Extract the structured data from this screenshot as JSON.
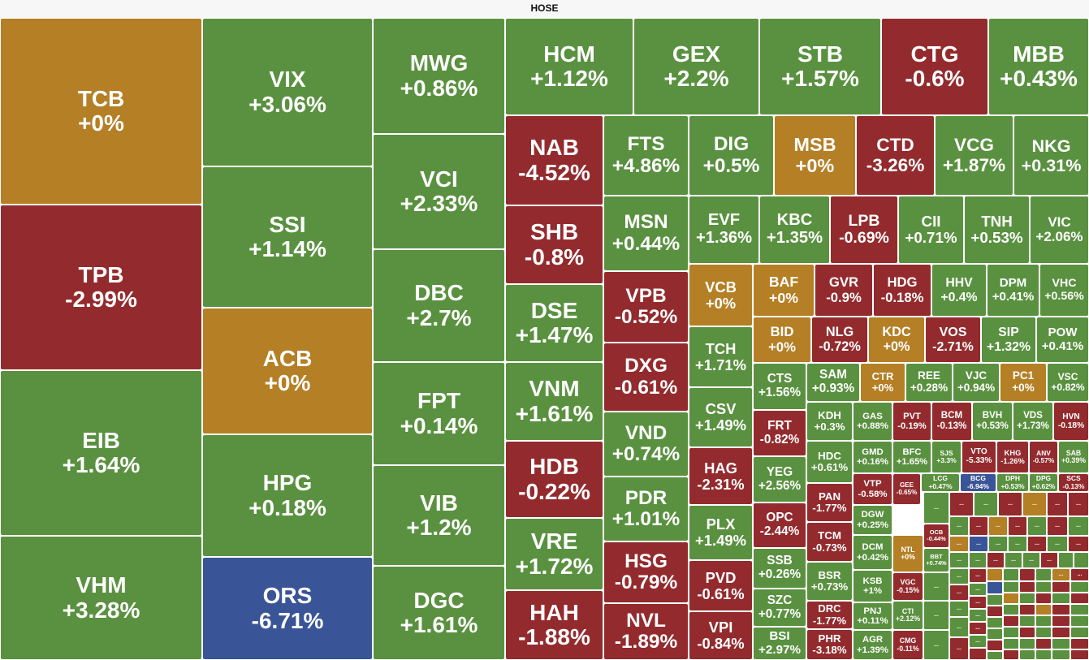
{
  "title": "HOSE",
  "colors": {
    "up": "#5a9140",
    "down": "#932b2e",
    "ref": "#b47f25",
    "floor": "#3a5597"
  },
  "chart_data": {
    "type": "treemap",
    "title": "HOSE",
    "tiles": [
      {
        "s": "TCB",
        "c": "+0%"
      },
      {
        "s": "TPB",
        "c": "-2.99%"
      },
      {
        "s": "EIB",
        "c": "+1.64%"
      },
      {
        "s": "VHM",
        "c": "+3.28%"
      },
      {
        "s": "VIX",
        "c": "+3.06%"
      },
      {
        "s": "SSI",
        "c": "+1.14%"
      },
      {
        "s": "ACB",
        "c": "+0%"
      },
      {
        "s": "HPG",
        "c": "+0.18%"
      },
      {
        "s": "ORS",
        "c": "-6.71%"
      },
      {
        "s": "MWG",
        "c": "+0.86%"
      },
      {
        "s": "VCI",
        "c": "+2.33%"
      },
      {
        "s": "DBC",
        "c": "+2.7%"
      },
      {
        "s": "FPT",
        "c": "+0.14%"
      },
      {
        "s": "VIB",
        "c": "+1.2%"
      },
      {
        "s": "DGC",
        "c": "+1.61%"
      },
      {
        "s": "HCM",
        "c": "+1.12%"
      },
      {
        "s": "GEX",
        "c": "+2.2%"
      },
      {
        "s": "STB",
        "c": "+1.57%"
      },
      {
        "s": "CTG",
        "c": "-0.6%"
      },
      {
        "s": "MBB",
        "c": "+0.43%"
      },
      {
        "s": "NAB",
        "c": "-4.52%"
      },
      {
        "s": "SHB",
        "c": "-0.8%"
      },
      {
        "s": "DSE",
        "c": "+1.47%"
      },
      {
        "s": "VNM",
        "c": "+1.61%"
      },
      {
        "s": "HDB",
        "c": "-0.22%"
      },
      {
        "s": "VRE",
        "c": "+1.72%"
      },
      {
        "s": "HAH",
        "c": "-1.88%"
      },
      {
        "s": "FTS",
        "c": "+4.86%"
      },
      {
        "s": "DIG",
        "c": "+0.5%"
      },
      {
        "s": "MSB",
        "c": "+0%"
      },
      {
        "s": "CTD",
        "c": "-3.26%"
      },
      {
        "s": "VCG",
        "c": "+1.87%"
      },
      {
        "s": "NKG",
        "c": "+0.31%"
      },
      {
        "s": "MSN",
        "c": "+0.44%"
      },
      {
        "s": "VPB",
        "c": "-0.52%"
      },
      {
        "s": "DXG",
        "c": "-0.61%"
      },
      {
        "s": "VND",
        "c": "+0.74%"
      },
      {
        "s": "PDR",
        "c": "+1.01%"
      },
      {
        "s": "HSG",
        "c": "-0.79%"
      },
      {
        "s": "NVL",
        "c": "-1.89%"
      },
      {
        "s": "EVF",
        "c": "+1.36%"
      },
      {
        "s": "KBC",
        "c": "+1.35%"
      },
      {
        "s": "LPB",
        "c": "-0.69%"
      },
      {
        "s": "CII",
        "c": "+0.71%"
      },
      {
        "s": "TNH",
        "c": "+0.53%"
      },
      {
        "s": "VIC",
        "c": "+2.06%"
      },
      {
        "s": "VCB",
        "c": "+0%"
      },
      {
        "s": "TCH",
        "c": "+1.71%"
      },
      {
        "s": "CSV",
        "c": "+1.49%"
      },
      {
        "s": "HAG",
        "c": "-2.31%"
      },
      {
        "s": "PLX",
        "c": "+1.49%"
      },
      {
        "s": "PVD",
        "c": "-0.61%"
      },
      {
        "s": "VPI",
        "c": "-0.84%"
      },
      {
        "s": "BAF",
        "c": "+0%"
      },
      {
        "s": "GVR",
        "c": "-0.9%"
      },
      {
        "s": "HDG",
        "c": "-0.18%"
      },
      {
        "s": "HHV",
        "c": "+0.4%"
      },
      {
        "s": "DPM",
        "c": "+0.41%"
      },
      {
        "s": "VHC",
        "c": "+0.56%"
      },
      {
        "s": "BID",
        "c": "+0%"
      },
      {
        "s": "NLG",
        "c": "-0.72%"
      },
      {
        "s": "KDC",
        "c": "+0%"
      },
      {
        "s": "VOS",
        "c": "-2.71%"
      },
      {
        "s": "SIP",
        "c": "+1.32%"
      },
      {
        "s": "POW",
        "c": "+0.41%"
      },
      {
        "s": "CTS",
        "c": "+1.56%"
      },
      {
        "s": "SAM",
        "c": "+0.93%"
      },
      {
        "s": "CTR",
        "c": "+0%"
      },
      {
        "s": "REE",
        "c": "+0.28%"
      },
      {
        "s": "VJC",
        "c": "+0.94%"
      },
      {
        "s": "PC1",
        "c": "+0%"
      },
      {
        "s": "VSC",
        "c": "+0.82%"
      },
      {
        "s": "FRT",
        "c": "-0.82%"
      },
      {
        "s": "KDH",
        "c": "+0.3%"
      },
      {
        "s": "GAS",
        "c": "+0.88%"
      },
      {
        "s": "PVT",
        "c": "-0.19%"
      },
      {
        "s": "BCM",
        "c": "-0.13%"
      },
      {
        "s": "BVH",
        "c": "+0.53%"
      },
      {
        "s": "VDS",
        "c": "+1.73%"
      },
      {
        "s": "HVN",
        "c": "-0.18%"
      },
      {
        "s": "YEG",
        "c": "+2.56%"
      },
      {
        "s": "HDC",
        "c": "+0.61%"
      },
      {
        "s": "GMD",
        "c": "+0.16%"
      },
      {
        "s": "BFC",
        "c": "+1.65%"
      },
      {
        "s": "SJS",
        "c": "+3.3%"
      },
      {
        "s": "VTO",
        "c": "-5.33%"
      },
      {
        "s": "KHG",
        "c": "-1.26%"
      },
      {
        "s": "ANV",
        "c": "-0.57%"
      },
      {
        "s": "SAB",
        "c": "+0.39%"
      },
      {
        "s": "OPC",
        "c": "-2.44%"
      },
      {
        "s": "PAN",
        "c": "-1.77%"
      },
      {
        "s": "VTP",
        "c": "-0.58%"
      },
      {
        "s": "GEE",
        "c": "-0.65%"
      },
      {
        "s": "LCG",
        "c": "+0.47%"
      },
      {
        "s": "BCG",
        "c": "-6.94%"
      },
      {
        "s": "DPH",
        "c": "+0.53%"
      },
      {
        "s": "DPG",
        "c": "+0.62%"
      },
      {
        "s": "SCS",
        "c": "-0.13%"
      },
      {
        "s": "SSB",
        "c": "+0.26%"
      },
      {
        "s": "TCM",
        "c": "-0.73%"
      },
      {
        "s": "DGW",
        "c": "+0.25%"
      },
      {
        "s": "BSR",
        "c": "+0.73%"
      },
      {
        "s": "DCM",
        "c": "+0.42%"
      },
      {
        "s": "NTL",
        "c": "+0%"
      },
      {
        "s": "OCB",
        "c": "-0.44%"
      },
      {
        "s": "SZC",
        "c": "+0.77%"
      },
      {
        "s": "DRC",
        "c": "-1.77%"
      },
      {
        "s": "KSB",
        "c": "+1%"
      },
      {
        "s": "BBT",
        "c": "+0.74%"
      },
      {
        "s": "VGC",
        "c": "-0.15%"
      },
      {
        "s": "BSI",
        "c": "+2.97%"
      },
      {
        "s": "PHR",
        "c": "-3.18%"
      },
      {
        "s": "PNJ",
        "c": "+0.11%"
      },
      {
        "s": "AGR",
        "c": "+1.39%"
      },
      {
        "s": "CTI",
        "c": "+2.12%"
      },
      {
        "s": "CMG",
        "c": "-0.11%"
      }
    ],
    "others_label": "..."
  }
}
